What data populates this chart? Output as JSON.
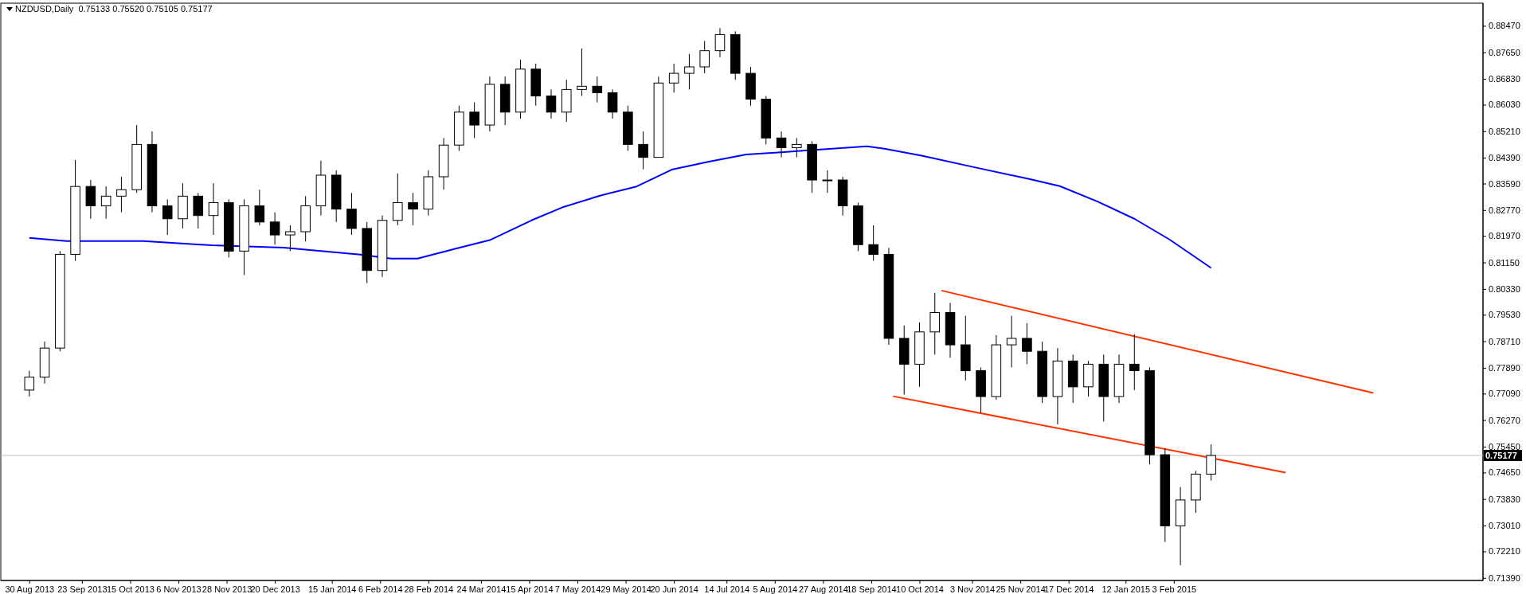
{
  "chart_data": {
    "type": "candlestick",
    "title": "NZDUSD,Daily  0.75133 0.75520 0.75105 0.75177",
    "x": [
      "2013-08-30",
      "2013-09-06",
      "2013-09-13",
      "2013-09-20",
      "2013-09-27",
      "2013-10-04",
      "2013-10-11",
      "2013-10-18",
      "2013-10-25",
      "2013-11-01",
      "2013-11-08",
      "2013-11-15",
      "2013-11-22",
      "2013-11-29",
      "2013-12-06",
      "2013-12-13",
      "2013-12-20",
      "2013-12-27",
      "2014-01-03",
      "2014-01-10",
      "2014-01-17",
      "2014-01-24",
      "2014-01-31",
      "2014-02-07",
      "2014-02-14",
      "2014-02-21",
      "2014-02-28",
      "2014-03-07",
      "2014-03-14",
      "2014-03-21",
      "2014-03-28",
      "2014-04-04",
      "2014-04-11",
      "2014-04-18",
      "2014-04-25",
      "2014-05-02",
      "2014-05-09",
      "2014-05-16",
      "2014-05-23",
      "2014-05-30",
      "2014-06-06",
      "2014-06-13",
      "2014-06-20",
      "2014-06-27",
      "2014-07-04",
      "2014-07-11",
      "2014-07-18",
      "2014-07-25",
      "2014-08-01",
      "2014-08-08",
      "2014-08-15",
      "2014-08-22",
      "2014-08-29",
      "2014-09-05",
      "2014-09-12",
      "2014-09-19",
      "2014-09-26",
      "2014-10-03",
      "2014-10-10",
      "2014-10-17",
      "2014-10-24",
      "2014-10-31",
      "2014-11-07",
      "2014-11-14",
      "2014-11-21",
      "2014-11-28",
      "2014-12-05",
      "2014-12-12",
      "2014-12-19",
      "2014-12-26",
      "2015-01-02",
      "2015-01-09",
      "2015-01-16",
      "2015-01-23",
      "2015-01-30",
      "2015-02-06",
      "2015-02-13",
      "2015-02-20"
    ],
    "ohlc": [
      [
        0.772,
        0.778,
        0.77,
        0.776
      ],
      [
        0.776,
        0.787,
        0.774,
        0.785
      ],
      [
        0.785,
        0.815,
        0.784,
        0.814
      ],
      [
        0.814,
        0.8432,
        0.812,
        0.835
      ],
      [
        0.835,
        0.837,
        0.825,
        0.829
      ],
      [
        0.829,
        0.835,
        0.825,
        0.832
      ],
      [
        0.832,
        0.838,
        0.827,
        0.834
      ],
      [
        0.834,
        0.854,
        0.833,
        0.848
      ],
      [
        0.848,
        0.852,
        0.827,
        0.829
      ],
      [
        0.829,
        0.831,
        0.82,
        0.825
      ],
      [
        0.825,
        0.836,
        0.822,
        0.832
      ],
      [
        0.832,
        0.833,
        0.822,
        0.826
      ],
      [
        0.826,
        0.836,
        0.82,
        0.83
      ],
      [
        0.83,
        0.831,
        0.813,
        0.815
      ],
      [
        0.815,
        0.831,
        0.8076,
        0.829
      ],
      [
        0.829,
        0.834,
        0.823,
        0.824
      ],
      [
        0.824,
        0.827,
        0.817,
        0.82
      ],
      [
        0.82,
        0.823,
        0.815,
        0.821
      ],
      [
        0.821,
        0.832,
        0.818,
        0.829
      ],
      [
        0.829,
        0.843,
        0.826,
        0.8385
      ],
      [
        0.8385,
        0.84,
        0.824,
        0.828
      ],
      [
        0.828,
        0.833,
        0.82,
        0.822
      ],
      [
        0.822,
        0.824,
        0.8051,
        0.809
      ],
      [
        0.809,
        0.826,
        0.807,
        0.8245
      ],
      [
        0.8245,
        0.839,
        0.823,
        0.83
      ],
      [
        0.83,
        0.833,
        0.823,
        0.828
      ],
      [
        0.828,
        0.84,
        0.826,
        0.838
      ],
      [
        0.838,
        0.85,
        0.834,
        0.8478
      ],
      [
        0.8478,
        0.86,
        0.846,
        0.858
      ],
      [
        0.858,
        0.861,
        0.85,
        0.854
      ],
      [
        0.854,
        0.869,
        0.852,
        0.8666
      ],
      [
        0.8666,
        0.869,
        0.854,
        0.858
      ],
      [
        0.858,
        0.8742,
        0.856,
        0.8713
      ],
      [
        0.8713,
        0.873,
        0.86,
        0.863
      ],
      [
        0.863,
        0.865,
        0.856,
        0.858
      ],
      [
        0.858,
        0.868,
        0.855,
        0.865
      ],
      [
        0.865,
        0.8777,
        0.863,
        0.866
      ],
      [
        0.866,
        0.869,
        0.861,
        0.864
      ],
      [
        0.864,
        0.865,
        0.856,
        0.858
      ],
      [
        0.858,
        0.86,
        0.846,
        0.848
      ],
      [
        0.848,
        0.852,
        0.8403,
        0.844
      ],
      [
        0.844,
        0.869,
        0.844,
        0.867
      ],
      [
        0.867,
        0.873,
        0.864,
        0.87
      ],
      [
        0.87,
        0.876,
        0.865,
        0.872
      ],
      [
        0.872,
        0.88,
        0.87,
        0.877
      ],
      [
        0.877,
        0.884,
        0.875,
        0.882
      ],
      [
        0.882,
        0.883,
        0.868,
        0.87
      ],
      [
        0.87,
        0.872,
        0.86,
        0.862
      ],
      [
        0.862,
        0.863,
        0.848,
        0.85
      ],
      [
        0.85,
        0.852,
        0.844,
        0.847
      ],
      [
        0.847,
        0.85,
        0.844,
        0.848
      ],
      [
        0.848,
        0.849,
        0.833,
        0.837
      ],
      [
        0.837,
        0.84,
        0.833,
        0.837
      ],
      [
        0.837,
        0.838,
        0.826,
        0.829
      ],
      [
        0.829,
        0.83,
        0.815,
        0.817
      ],
      [
        0.817,
        0.823,
        0.812,
        0.814
      ],
      [
        0.814,
        0.816,
        0.786,
        0.788
      ],
      [
        0.788,
        0.792,
        0.7706,
        0.78
      ],
      [
        0.78,
        0.793,
        0.773,
        0.79
      ],
      [
        0.79,
        0.8021,
        0.783,
        0.796
      ],
      [
        0.796,
        0.799,
        0.782,
        0.786
      ],
      [
        0.786,
        0.795,
        0.775,
        0.778
      ],
      [
        0.778,
        0.779,
        0.765,
        0.77
      ],
      [
        0.77,
        0.789,
        0.769,
        0.786
      ],
      [
        0.786,
        0.795,
        0.779,
        0.788
      ],
      [
        0.788,
        0.7927,
        0.78,
        0.784
      ],
      [
        0.784,
        0.787,
        0.768,
        0.77
      ],
      [
        0.77,
        0.785,
        0.7614,
        0.781
      ],
      [
        0.781,
        0.783,
        0.768,
        0.773
      ],
      [
        0.773,
        0.781,
        0.77,
        0.78
      ],
      [
        0.78,
        0.783,
        0.7623,
        0.77
      ],
      [
        0.77,
        0.783,
        0.768,
        0.78
      ],
      [
        0.78,
        0.7893,
        0.772,
        0.778
      ],
      [
        0.778,
        0.779,
        0.749,
        0.752
      ],
      [
        0.752,
        0.754,
        0.725,
        0.73
      ],
      [
        0.73,
        0.742,
        0.7178,
        0.738
      ],
      [
        0.738,
        0.747,
        0.734,
        0.746
      ],
      [
        0.746,
        0.7552,
        0.744,
        0.75177
      ]
    ],
    "series": [
      {
        "type": "line",
        "color": "#0000ff",
        "x": [
          "2013-08-30",
          "2013-09-16",
          "2013-10-21",
          "2013-11-21",
          "2013-12-24",
          "2014-01-28",
          "2014-02-11",
          "2014-02-23",
          "2014-03-15",
          "2014-03-28",
          "2014-04-16",
          "2014-04-30",
          "2014-05-17",
          "2014-06-03",
          "2014-06-19",
          "2014-07-06",
          "2014-07-23",
          "2014-08-08",
          "2014-09-16",
          "2014-09-24",
          "2014-10-11",
          "2014-11-05",
          "2014-11-29",
          "2014-12-13",
          "2014-12-30",
          "2015-01-16",
          "2015-02-01",
          "2015-02-20"
        ],
        "values": [
          0.8191,
          0.8181,
          0.8181,
          0.8168,
          0.8161,
          0.8139,
          0.8127,
          0.8127,
          0.8162,
          0.8184,
          0.8245,
          0.8285,
          0.8321,
          0.835,
          0.8402,
          0.8427,
          0.8449,
          0.8456,
          0.8474,
          0.8467,
          0.8445,
          0.8408,
          0.8373,
          0.8351,
          0.8304,
          0.825,
          0.8186,
          0.8098
        ]
      },
      {
        "type": "line",
        "color": "#ff3300",
        "x": [
          "2014-10-20",
          "2015-05-05"
        ],
        "values": [
          0.8028,
          0.7711
        ]
      },
      {
        "type": "line",
        "color": "#ff3300",
        "x": [
          "2014-09-28",
          "2015-03-26"
        ],
        "values": [
          0.7701,
          0.7465
        ]
      }
    ],
    "xlim": [
      "2013-08-17",
      "2015-06-24"
    ],
    "xticks": [
      {
        "value": "2013-08-30",
        "label": "30 Aug 2013"
      },
      {
        "value": "2013-09-23",
        "label": "23 Sep 2013"
      },
      {
        "value": "2013-10-15",
        "label": "15 Oct 2013"
      },
      {
        "value": "2013-11-06",
        "label": "6 Nov 2013"
      },
      {
        "value": "2013-11-28",
        "label": "28 Nov 2013"
      },
      {
        "value": "2013-12-20",
        "label": "20 Dec 2013"
      },
      {
        "value": "2014-01-15",
        "label": "15 Jan 2014"
      },
      {
        "value": "2014-02-06",
        "label": "6 Feb 2014"
      },
      {
        "value": "2014-02-28",
        "label": "28 Feb 2014"
      },
      {
        "value": "2014-03-24",
        "label": "24 Mar 2014"
      },
      {
        "value": "2014-04-15",
        "label": "15 Apr 2014"
      },
      {
        "value": "2014-05-07",
        "label": "7 May 2014"
      },
      {
        "value": "2014-05-29",
        "label": "29 May 2014"
      },
      {
        "value": "2014-06-20",
        "label": "20 Jun 2014"
      },
      {
        "value": "2014-07-14",
        "label": "14 Jul 2014"
      },
      {
        "value": "2014-08-05",
        "label": "5 Aug 2014"
      },
      {
        "value": "2014-08-27",
        "label": "27 Aug 2014"
      },
      {
        "value": "2014-09-18",
        "label": "18 Sep 2014"
      },
      {
        "value": "2014-10-10",
        "label": "10 Oct 2014"
      },
      {
        "value": "2014-11-03",
        "label": "3 Nov 2014"
      },
      {
        "value": "2014-11-25",
        "label": "25 Nov 2014"
      },
      {
        "value": "2014-12-17",
        "label": "17 Dec 2014"
      },
      {
        "value": "2015-01-12",
        "label": "12 Jan 2015"
      },
      {
        "value": "2015-02-03",
        "label": "3 Feb 2015"
      }
    ],
    "ylim": [
      0.7131,
      0.8917
    ],
    "yticks": [
      {
        "value": 0.8847,
        "label": "0.88470"
      },
      {
        "value": 0.8765,
        "label": "0.87650"
      },
      {
        "value": 0.8683,
        "label": "0.86830"
      },
      {
        "value": 0.8603,
        "label": "0.86030"
      },
      {
        "value": 0.8521,
        "label": "0.85210"
      },
      {
        "value": 0.8439,
        "label": "0.84390"
      },
      {
        "value": 0.8359,
        "label": "0.83590"
      },
      {
        "value": 0.8277,
        "label": "0.82770"
      },
      {
        "value": 0.8197,
        "label": "0.81970"
      },
      {
        "value": 0.8115,
        "label": "0.81150"
      },
      {
        "value": 0.8033,
        "label": "0.80330"
      },
      {
        "value": 0.7953,
        "label": "0.79530"
      },
      {
        "value": 0.7871,
        "label": "0.78710"
      },
      {
        "value": 0.7789,
        "label": "0.77890"
      },
      {
        "value": 0.7709,
        "label": "0.77090"
      },
      {
        "value": 0.7627,
        "label": "0.76270"
      },
      {
        "value": 0.7545,
        "label": "0.75450"
      },
      {
        "value": 0.7465,
        "label": "0.74650"
      },
      {
        "value": 0.7383,
        "label": "0.73830"
      },
      {
        "value": 0.7301,
        "label": "0.73010"
      },
      {
        "value": 0.7221,
        "label": "0.72210"
      },
      {
        "value": 0.7139,
        "label": "0.71390"
      }
    ],
    "ref_lines": [
      {
        "axis": "y",
        "value": 0.75177,
        "label": "0.75177",
        "color": "#c0c0c0"
      }
    ],
    "grid": false
  }
}
